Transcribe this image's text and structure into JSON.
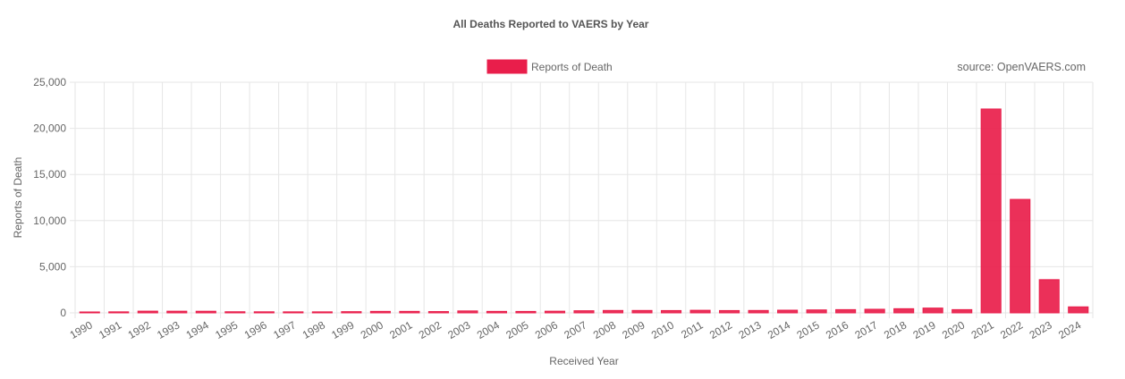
{
  "chart_data": {
    "type": "bar",
    "title": "All Deaths Reported to VAERS by Year",
    "source": "source: OpenVAERS.com",
    "xlabel": "Received Year",
    "ylabel": "Reports of Death",
    "ylim": [
      0,
      25000
    ],
    "yticks": [
      0,
      5000,
      10000,
      15000,
      20000,
      25000
    ],
    "ytick_labels": [
      "0",
      "5,000",
      "10,000",
      "15,000",
      "20,000",
      "25,000"
    ],
    "grid": true,
    "legend_position": "top-center",
    "categories": [
      "1990",
      "1991",
      "1992",
      "1993",
      "1994",
      "1995",
      "1996",
      "1997",
      "1998",
      "1999",
      "2000",
      "2001",
      "2002",
      "2003",
      "2004",
      "2005",
      "2006",
      "2007",
      "2008",
      "2009",
      "2010",
      "2011",
      "2012",
      "2013",
      "2014",
      "2015",
      "2016",
      "2017",
      "2018",
      "2019",
      "2020",
      "2021",
      "2022",
      "2023",
      "2024"
    ],
    "series": [
      {
        "name": "Reports of Death",
        "color": "#e91e4b",
        "values": [
          95,
          110,
          185,
          180,
          175,
          120,
          115,
          110,
          110,
          130,
          160,
          160,
          140,
          210,
          160,
          155,
          180,
          230,
          260,
          260,
          250,
          280,
          250,
          260,
          290,
          320,
          350,
          390,
          450,
          520,
          350,
          22100,
          12300,
          3600,
          650
        ]
      }
    ]
  }
}
